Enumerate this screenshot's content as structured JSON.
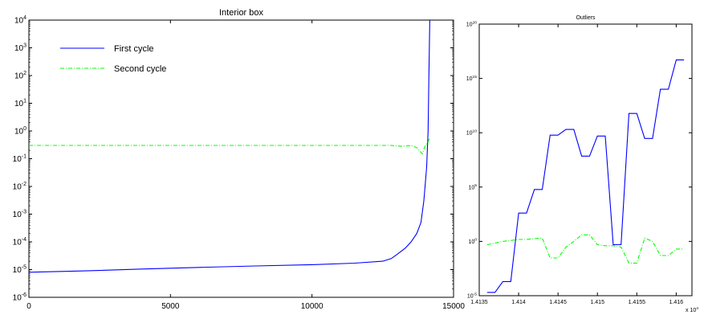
{
  "chart_data": [
    {
      "type": "line",
      "title": "Interior box",
      "xlabel": "",
      "ylabel": "",
      "xlim": [
        0,
        15000
      ],
      "ylim": [
        1e-06,
        10000
      ],
      "yscale": "log",
      "grid": false,
      "legend": "top-left",
      "x_ticks": [
        "0",
        "5000",
        "10000",
        "15000"
      ],
      "y_ticks": [
        "10^-6",
        "10^-5",
        "10^-4",
        "10^-3",
        "10^-2",
        "10^-1",
        "10^0",
        "10^1",
        "10^2",
        "10^3",
        "10^4"
      ],
      "colors": {
        "First cycle": "#0000ff",
        "Second cycle": "#00ff00"
      },
      "series": [
        {
          "name": "First cycle",
          "style": "solid",
          "x": [
            0,
            2000,
            4000,
            6000,
            8000,
            10000,
            11500,
            12500,
            12800,
            13000,
            13300,
            13500,
            13700,
            13850,
            13950,
            14050,
            14100,
            14130,
            14160
          ],
          "y": [
            8e-06,
            9e-06,
            1.05e-05,
            1.2e-05,
            1.35e-05,
            1.5e-05,
            1.7e-05,
            2e-05,
            2.5e-05,
            3.5e-05,
            6e-05,
            0.0001,
            0.0002,
            0.0005,
            0.003,
            0.05,
            1,
            100,
            10000
          ]
        },
        {
          "name": "Second cycle",
          "style": "dash-dot",
          "x": [
            0,
            2000,
            4000,
            6000,
            8000,
            10000,
            12000,
            12800,
            13200,
            13500,
            13700,
            13900,
            14000,
            14100,
            14160
          ],
          "y": [
            0.3,
            0.3,
            0.3,
            0.3,
            0.3,
            0.3,
            0.3,
            0.3,
            0.28,
            0.3,
            0.25,
            0.15,
            0.3,
            0.4,
            0.6
          ]
        }
      ]
    },
    {
      "type": "line",
      "title": "Outliers",
      "xlabel": "",
      "ylabel": "",
      "xlim": [
        14135,
        14162
      ],
      "ylim": [
        1e-05,
        1e+20
      ],
      "yscale": "log",
      "grid": false,
      "x_ticks": [
        "1.4135",
        "1.414",
        "1.4145",
        "1.415",
        "1.4155",
        "1.416"
      ],
      "x_multiplier": "x 10^4",
      "y_ticks": [
        "10^-5",
        "10^0",
        "10^5",
        "10^10",
        "10^15",
        "10^20"
      ],
      "series": [
        {
          "name": "",
          "color": "#0000ff",
          "style": "solid",
          "x": [
            14136,
            14137,
            14138,
            14139,
            14140,
            14141,
            14142,
            14143,
            14144,
            14145,
            14146,
            14147,
            14148,
            14149,
            14150,
            14151,
            14152,
            14153,
            14154,
            14155,
            14156,
            14157,
            14158,
            14159,
            14160,
            14161
          ],
          "y": [
            2e-05,
            2e-05,
            0.0002,
            0.0002,
            400,
            400,
            60000,
            60000,
            6000000000,
            6000000000,
            20000000000,
            20000000000,
            70000000,
            70000000,
            5000000000,
            5000000000,
            0.5,
            0.5,
            600000000000,
            600000000000,
            3000000000,
            3000000000,
            100000000000000,
            100000000000000,
            50000000000000000,
            50000000000000000
          ]
        },
        {
          "name": "",
          "color": "#00ff00",
          "style": "dash-dot",
          "x": [
            14136,
            14137,
            14138,
            14139,
            14140,
            14141,
            14142,
            14143,
            14144,
            14145,
            14146,
            14147,
            14148,
            14149,
            14150,
            14151,
            14152,
            14153,
            14154,
            14155,
            14156,
            14157,
            14158,
            14159,
            14160,
            14161
          ],
          "y": [
            0.5,
            0.7,
            1,
            1.2,
            1.5,
            1.5,
            1.8,
            2,
            0.03,
            0.03,
            0.3,
            1,
            4,
            4,
            0.5,
            0.4,
            0.4,
            0.3,
            0.01,
            0.01,
            2,
            1,
            0.05,
            0.05,
            0.2,
            0.2
          ]
        }
      ]
    }
  ]
}
